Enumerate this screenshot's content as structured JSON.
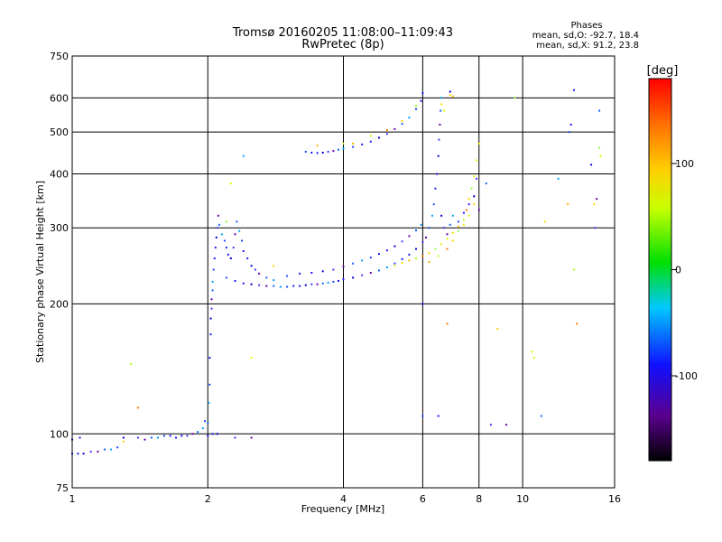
{
  "chart_data": {
    "type": "scatter",
    "title": "Tromsø 20160205 11:08:00–11:09:43",
    "subtitle": "RwPretec (8p)",
    "xlabel": "Frequency [MHz]",
    "ylabel": "Stationary phase Virtual Height [km]",
    "x_scale": "log",
    "y_scale": "log",
    "xlim": [
      1,
      16
    ],
    "ylim": [
      75,
      750
    ],
    "x_ticks": [
      {
        "value": 1,
        "label": "1"
      },
      {
        "value": 2,
        "label": "2"
      },
      {
        "value": 4,
        "label": "4"
      },
      {
        "value": 6,
        "label": "6"
      },
      {
        "value": 8,
        "label": "8"
      },
      {
        "value": 10,
        "label": "10"
      },
      {
        "value": 16,
        "label": "16"
      }
    ],
    "y_ticks": [
      {
        "value": 75,
        "label": "75"
      },
      {
        "value": 100,
        "label": "100"
      },
      {
        "value": 200,
        "label": "200"
      },
      {
        "value": 300,
        "label": "300"
      },
      {
        "value": 400,
        "label": "400"
      },
      {
        "value": 500,
        "label": "500"
      },
      {
        "value": 600,
        "label": "600"
      },
      {
        "value": 750,
        "label": "750"
      }
    ],
    "grid": true,
    "phase_info": {
      "title": "Phases",
      "line_o": "mean, sd,O: -92.7, 18.4",
      "line_x": "mean, sd,X:  91.2, 23.8"
    },
    "colorbar": {
      "label": "[deg]",
      "range": [
        -180,
        180
      ],
      "ticks": [
        {
          "value": 100,
          "label": "100"
        },
        {
          "value": 0,
          "label": "0"
        },
        {
          "value": -100,
          "label": "-100"
        }
      ]
    },
    "series": [
      {
        "points": [
          [
            1.0,
            90
          ],
          [
            1.03,
            90
          ],
          [
            1.06,
            90
          ],
          [
            1.1,
            91
          ],
          [
            1.14,
            91
          ],
          [
            1.18,
            92
          ],
          [
            1.22,
            92
          ],
          [
            1.26,
            93
          ],
          [
            1.0,
            97
          ],
          [
            1.04,
            98
          ],
          [
            1.3,
            98
          ],
          [
            1.4,
            98
          ],
          [
            1.45,
            97
          ],
          [
            1.5,
            98
          ],
          [
            1.55,
            98
          ],
          [
            1.6,
            99
          ],
          [
            1.65,
            99
          ],
          [
            1.7,
            98
          ],
          [
            1.75,
            99
          ],
          [
            1.8,
            99
          ],
          [
            1.85,
            100
          ],
          [
            1.9,
            101
          ],
          [
            1.95,
            103
          ],
          [
            1.97,
            107
          ],
          [
            2.0,
            99
          ],
          [
            2.05,
            100
          ],
          [
            2.1,
            100
          ],
          [
            2.3,
            98
          ],
          [
            2.5,
            98
          ],
          [
            2.0,
            106
          ],
          [
            2.01,
            118
          ],
          [
            2.02,
            130
          ],
          [
            2.02,
            150
          ],
          [
            2.03,
            170
          ],
          [
            2.03,
            185
          ],
          [
            2.04,
            195
          ],
          [
            2.04,
            205
          ],
          [
            2.05,
            215
          ],
          [
            2.05,
            225
          ],
          [
            2.06,
            240
          ],
          [
            2.07,
            255
          ],
          [
            2.08,
            270
          ],
          [
            2.09,
            285
          ],
          [
            2.1,
            300
          ],
          [
            2.11,
            320
          ],
          [
            2.12,
            305
          ],
          [
            2.15,
            290
          ],
          [
            2.18,
            280
          ],
          [
            2.2,
            270
          ],
          [
            2.22,
            260
          ],
          [
            2.25,
            255
          ],
          [
            2.28,
            270
          ],
          [
            2.3,
            290
          ],
          [
            2.32,
            310
          ],
          [
            2.35,
            295
          ],
          [
            2.38,
            280
          ],
          [
            2.4,
            265
          ],
          [
            2.45,
            255
          ],
          [
            2.5,
            245
          ],
          [
            2.55,
            240
          ],
          [
            2.6,
            235
          ],
          [
            2.7,
            230
          ],
          [
            2.8,
            227
          ],
          [
            2.2,
            230
          ],
          [
            2.3,
            226
          ],
          [
            2.4,
            223
          ],
          [
            2.5,
            222
          ],
          [
            2.6,
            221
          ],
          [
            2.7,
            220
          ],
          [
            2.8,
            220
          ],
          [
            2.9,
            219
          ],
          [
            3.0,
            219
          ],
          [
            3.1,
            220
          ],
          [
            3.2,
            220
          ],
          [
            3.3,
            221
          ],
          [
            3.4,
            222
          ],
          [
            3.5,
            222
          ],
          [
            3.6,
            223
          ],
          [
            3.7,
            224
          ],
          [
            3.8,
            225
          ],
          [
            3.9,
            226
          ],
          [
            4.0,
            228
          ],
          [
            4.2,
            230
          ],
          [
            4.4,
            233
          ],
          [
            4.6,
            236
          ],
          [
            4.8,
            239
          ],
          [
            5.0,
            243
          ],
          [
            5.2,
            248
          ],
          [
            5.4,
            254
          ],
          [
            5.6,
            260
          ],
          [
            5.8,
            268
          ],
          [
            6.0,
            278
          ],
          [
            6.1,
            285
          ],
          [
            6.2,
            300
          ],
          [
            6.3,
            320
          ],
          [
            6.35,
            340
          ],
          [
            6.4,
            370
          ],
          [
            6.45,
            400
          ],
          [
            6.5,
            440
          ],
          [
            6.52,
            480
          ],
          [
            6.55,
            520
          ],
          [
            6.57,
            560
          ],
          [
            6.6,
            600
          ],
          [
            3.0,
            232
          ],
          [
            3.2,
            235
          ],
          [
            3.4,
            236
          ],
          [
            3.6,
            238
          ],
          [
            3.8,
            240
          ],
          [
            4.0,
            244
          ],
          [
            4.2,
            248
          ],
          [
            4.4,
            252
          ],
          [
            4.6,
            256
          ],
          [
            4.8,
            261
          ],
          [
            5.0,
            266
          ],
          [
            5.2,
            272
          ],
          [
            5.4,
            279
          ],
          [
            5.6,
            287
          ],
          [
            5.8,
            296
          ],
          [
            5.95,
            305
          ],
          [
            3.3,
            450
          ],
          [
            3.4,
            448
          ],
          [
            3.5,
            447
          ],
          [
            3.6,
            448
          ],
          [
            3.7,
            450
          ],
          [
            3.8,
            452
          ],
          [
            3.9,
            455
          ],
          [
            4.0,
            458
          ],
          [
            4.2,
            462
          ],
          [
            4.4,
            468
          ],
          [
            4.6,
            475
          ],
          [
            4.8,
            485
          ],
          [
            5.0,
            495
          ],
          [
            5.2,
            508
          ],
          [
            5.4,
            522
          ],
          [
            5.6,
            540
          ],
          [
            5.8,
            565
          ],
          [
            5.95,
            590
          ],
          [
            6.0,
            615
          ],
          [
            6.6,
            320
          ],
          [
            6.7,
            300
          ],
          [
            6.8,
            290
          ],
          [
            6.9,
            305
          ],
          [
            7.0,
            320
          ],
          [
            7.2,
            310
          ],
          [
            7.4,
            325
          ],
          [
            7.6,
            340
          ],
          [
            7.8,
            355
          ],
          [
            7.9,
            390
          ],
          [
            8.0,
            330
          ],
          [
            8.3,
            380
          ],
          [
            2.4,
            440
          ],
          [
            6.0,
            110
          ],
          [
            6.0,
            200
          ],
          [
            6.5,
            110
          ],
          [
            6.9,
            620
          ],
          [
            8.5,
            105
          ],
          [
            9.2,
            105
          ],
          [
            11.0,
            110
          ],
          [
            12.0,
            390
          ],
          [
            12.7,
            500
          ],
          [
            12.8,
            520
          ],
          [
            13.0,
            625
          ],
          [
            14.2,
            420
          ],
          [
            14.5,
            300
          ],
          [
            14.6,
            350
          ],
          [
            14.8,
            560
          ]
        ]
      },
      {
        "points": [
          [
            5.2,
            245
          ],
          [
            5.4,
            249
          ],
          [
            5.6,
            252
          ],
          [
            5.8,
            255
          ],
          [
            6.0,
            258
          ],
          [
            6.2,
            262
          ],
          [
            6.4,
            268
          ],
          [
            6.6,
            275
          ],
          [
            6.8,
            283
          ],
          [
            7.0,
            292
          ],
          [
            7.2,
            302
          ],
          [
            7.4,
            313
          ],
          [
            7.5,
            330
          ],
          [
            7.6,
            350
          ],
          [
            7.7,
            370
          ],
          [
            7.8,
            395
          ],
          [
            7.9,
            430
          ],
          [
            8.0,
            470
          ],
          [
            6.2,
            250
          ],
          [
            6.5,
            258
          ],
          [
            6.8,
            268
          ],
          [
            7.0,
            280
          ],
          [
            7.2,
            295
          ],
          [
            7.4,
            305
          ],
          [
            7.6,
            320
          ],
          [
            7.8,
            340
          ],
          [
            4.2,
            470
          ],
          [
            4.6,
            490
          ],
          [
            5.0,
            505
          ],
          [
            5.4,
            530
          ],
          [
            5.8,
            575
          ],
          [
            6.6,
            580
          ],
          [
            6.7,
            560
          ],
          [
            6.9,
            610
          ],
          [
            7.0,
            605
          ],
          [
            1.35,
            145
          ],
          [
            1.4,
            115
          ],
          [
            1.3,
            96
          ],
          [
            2.2,
            310
          ],
          [
            2.25,
            380
          ],
          [
            2.5,
            150
          ],
          [
            2.8,
            245
          ],
          [
            3.5,
            465
          ],
          [
            4.0,
            470
          ],
          [
            6.8,
            180
          ],
          [
            8.8,
            175
          ],
          [
            9.6,
            600
          ],
          [
            10.5,
            155
          ],
          [
            10.6,
            150
          ],
          [
            11.2,
            310
          ],
          [
            12.6,
            340
          ],
          [
            13.0,
            240
          ],
          [
            13.2,
            180
          ],
          [
            14.4,
            340
          ],
          [
            14.8,
            460
          ],
          [
            14.9,
            440
          ]
        ]
      }
    ]
  }
}
